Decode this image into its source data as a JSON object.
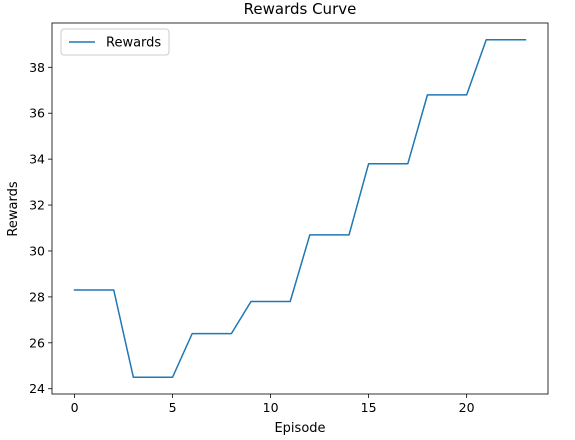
{
  "chart_data": {
    "type": "line",
    "title": "Rewards Curve",
    "xlabel": "Episode",
    "ylabel": "Rewards",
    "xlim": [
      -1.15,
      24.15
    ],
    "ylim": [
      23.77,
      39.93
    ],
    "xticks": [
      0,
      5,
      10,
      15,
      20
    ],
    "yticks": [
      24,
      26,
      28,
      30,
      32,
      34,
      36,
      38
    ],
    "grid": false,
    "legend": {
      "position": "upper-left",
      "entries": [
        "Rewards"
      ]
    },
    "series": [
      {
        "name": "Rewards",
        "color": "#1f77b4",
        "x": [
          0,
          1,
          2,
          3,
          4,
          5,
          6,
          7,
          8,
          9,
          10,
          11,
          12,
          13,
          14,
          15,
          16,
          17,
          18,
          19,
          20,
          21,
          22,
          23
        ],
        "values": [
          28.3,
          28.3,
          28.3,
          24.5,
          24.5,
          24.5,
          26.4,
          26.4,
          26.4,
          27.8,
          27.8,
          27.8,
          30.7,
          30.7,
          30.7,
          33.8,
          33.8,
          33.8,
          36.8,
          36.8,
          36.8,
          39.2,
          39.2,
          39.2
        ]
      }
    ]
  }
}
